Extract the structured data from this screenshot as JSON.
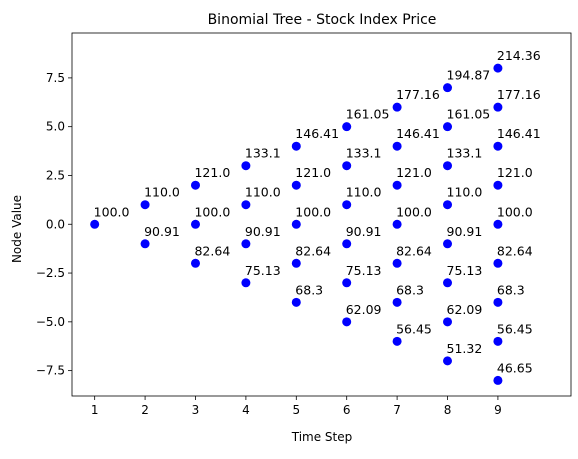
{
  "chart_data": {
    "type": "scatter",
    "title": "Binomial Tree - Stock Index Price",
    "xlabel": "Time Step",
    "ylabel": "Node Value",
    "xlim": [
      0.55,
      10.45
    ],
    "ylim": [
      -8.8,
      9.8
    ],
    "xticks": [
      1,
      2,
      3,
      4,
      5,
      6,
      7,
      8,
      9
    ],
    "yticks": [
      -7.5,
      -5.0,
      -2.5,
      0.0,
      2.5,
      5.0,
      7.5
    ],
    "ytick_labels": [
      "−7.5",
      "−5.0",
      "−2.5",
      "0.0",
      "2.5",
      "5.0",
      "7.5"
    ],
    "grid": false,
    "marker_color": "#0000ff",
    "points": [
      {
        "x": 1,
        "y": 0,
        "label": "100.0"
      },
      {
        "x": 2,
        "y": 1,
        "label": "110.0"
      },
      {
        "x": 2,
        "y": -1,
        "label": "90.91"
      },
      {
        "x": 3,
        "y": 2,
        "label": "121.0"
      },
      {
        "x": 3,
        "y": 0,
        "label": "100.0"
      },
      {
        "x": 3,
        "y": -2,
        "label": "82.64"
      },
      {
        "x": 4,
        "y": 3,
        "label": "133.1"
      },
      {
        "x": 4,
        "y": 1,
        "label": "110.0"
      },
      {
        "x": 4,
        "y": -1,
        "label": "90.91"
      },
      {
        "x": 4,
        "y": -3,
        "label": "75.13"
      },
      {
        "x": 5,
        "y": 4,
        "label": "146.41"
      },
      {
        "x": 5,
        "y": 2,
        "label": "121.0"
      },
      {
        "x": 5,
        "y": 0,
        "label": "100.0"
      },
      {
        "x": 5,
        "y": -2,
        "label": "82.64"
      },
      {
        "x": 5,
        "y": -4,
        "label": "68.3"
      },
      {
        "x": 6,
        "y": 5,
        "label": "161.05"
      },
      {
        "x": 6,
        "y": 3,
        "label": "133.1"
      },
      {
        "x": 6,
        "y": 1,
        "label": "110.0"
      },
      {
        "x": 6,
        "y": -1,
        "label": "90.91"
      },
      {
        "x": 6,
        "y": -3,
        "label": "75.13"
      },
      {
        "x": 6,
        "y": -5,
        "label": "62.09"
      },
      {
        "x": 7,
        "y": 6,
        "label": "177.16"
      },
      {
        "x": 7,
        "y": 4,
        "label": "146.41"
      },
      {
        "x": 7,
        "y": 2,
        "label": "121.0"
      },
      {
        "x": 7,
        "y": 0,
        "label": "100.0"
      },
      {
        "x": 7,
        "y": -2,
        "label": "82.64"
      },
      {
        "x": 7,
        "y": -4,
        "label": "68.3"
      },
      {
        "x": 7,
        "y": -6,
        "label": "56.45"
      },
      {
        "x": 8,
        "y": 7,
        "label": "194.87"
      },
      {
        "x": 8,
        "y": 5,
        "label": "161.05"
      },
      {
        "x": 8,
        "y": 3,
        "label": "133.1"
      },
      {
        "x": 8,
        "y": 1,
        "label": "110.0"
      },
      {
        "x": 8,
        "y": -1,
        "label": "90.91"
      },
      {
        "x": 8,
        "y": -3,
        "label": "75.13"
      },
      {
        "x": 8,
        "y": -5,
        "label": "62.09"
      },
      {
        "x": 8,
        "y": -7,
        "label": "51.32"
      },
      {
        "x": 9,
        "y": 8,
        "label": "214.36"
      },
      {
        "x": 9,
        "y": 6,
        "label": "177.16"
      },
      {
        "x": 9,
        "y": 4,
        "label": "146.41"
      },
      {
        "x": 9,
        "y": 2,
        "label": "121.0"
      },
      {
        "x": 9,
        "y": 0,
        "label": "100.0"
      },
      {
        "x": 9,
        "y": -2,
        "label": "82.64"
      },
      {
        "x": 9,
        "y": -4,
        "label": "68.3"
      },
      {
        "x": 9,
        "y": -6,
        "label": "56.45"
      },
      {
        "x": 9,
        "y": -8,
        "label": "46.65"
      }
    ]
  }
}
